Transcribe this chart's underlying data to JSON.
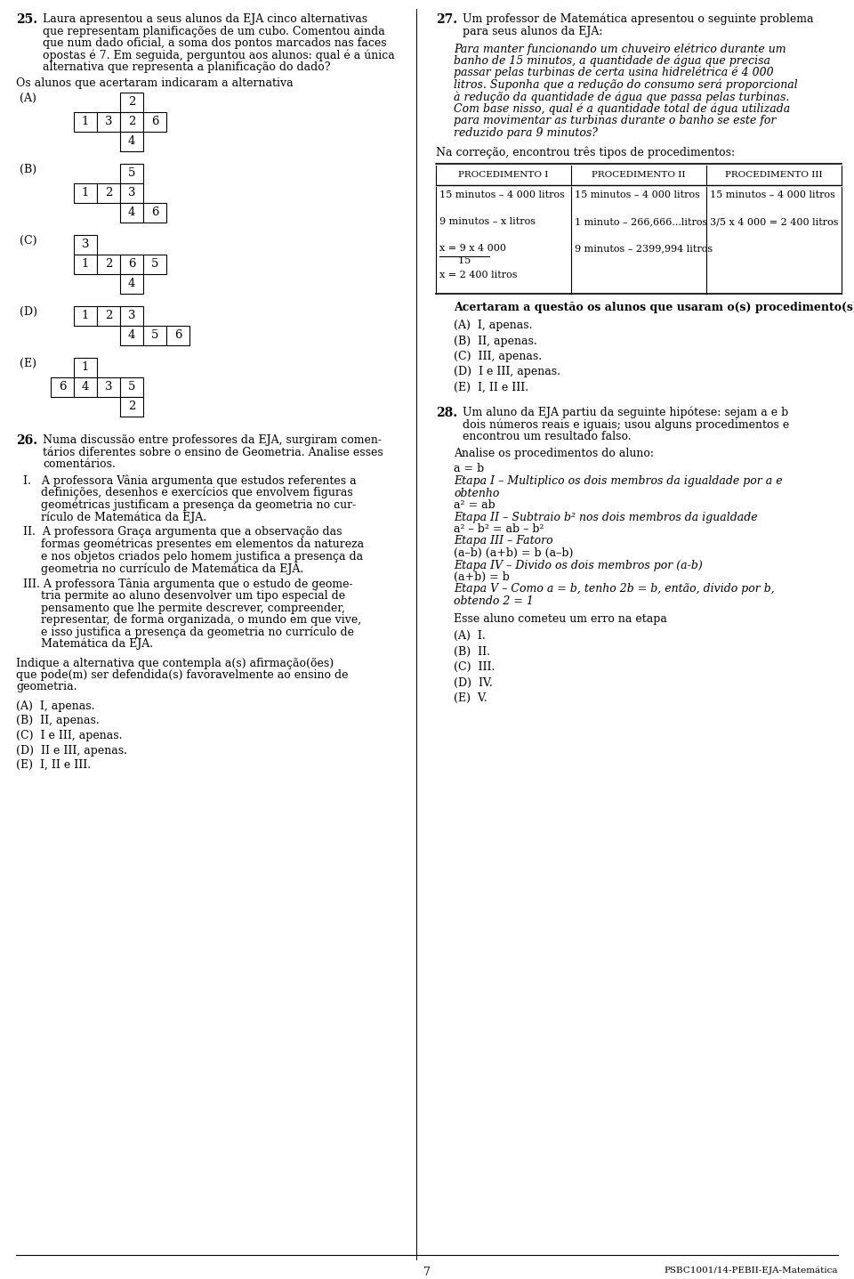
{
  "bg_color": "#ffffff",
  "text_color": "#000000",
  "page_number": "7",
  "footer_text": "PSBC1001/14-PEBII-EJA-Matemática",
  "q25_number": "25.",
  "q25_text_lines": [
    "Laura apresentou a seus alunos da EJA cinco alternativas",
    "que representam planificações de um cubo. Comentou ainda",
    "que num dado oficial, a soma dos pontos marcados nas faces",
    "opostas é 7. Em seguida, perguntou aos alunos: qual é a única",
    "alternativa que representa a planificação do dado?"
  ],
  "q25_sub": "Os alunos que acertaram indicaram a alternativa",
  "q26_number": "26.",
  "q26_text_lines": [
    "Numa discussão entre professores da EJA, surgiram comen-",
    "tários diferentes sobre o ensino de Geometria. Analise esses",
    "comentários."
  ],
  "q26_I_lines": [
    "I.   A professora Vânia argumenta que estudos referentes a",
    "     definições, desenhos e exercícios que envolvem figuras",
    "     geométricas justificam a presença da geometria no cur-",
    "     rículo de Matemática da EJA."
  ],
  "q26_II_lines": [
    "II.  A professora Graça argumenta que a observação das",
    "     formas geométricas presentes em elementos da natureza",
    "     e nos objetos criados pelo homem justifica a presença da",
    "     geometria no currículo de Matemática da EJA."
  ],
  "q26_III_lines": [
    "III. A professora Tânia argumenta que o estudo de geome-",
    "     tria permite ao aluno desenvolver um tipo especial de",
    "     pensamento que lhe permite descrever, compreender,",
    "     representar, de forma organizada, o mundo em que vive,",
    "     e isso justifica a presença da geometria no currículo de",
    "     Matemática da EJA."
  ],
  "q26_indique_lines": [
    "Indique a alternativa que contempla a(s) afirmação(ões)",
    "que pode(m) ser defendida(s) favoravelmente ao ensino de",
    "geometria."
  ],
  "q26_opts": [
    "(A)  I, apenas.",
    "(B)  II, apenas.",
    "(C)  I e III, apenas.",
    "(D)  II e III, apenas.",
    "(E)  I, II e III."
  ],
  "q27_number": "27.",
  "q27_text_lines": [
    "Um professor de Matemática apresentou o seguinte problema",
    "para seus alunos da EJA:"
  ],
  "q27_italic_lines": [
    "Para manter funcionando um chuveiro elétrico durante um",
    "banho de 15 minutos, a quantidade de água que precisa",
    "passar pelas turbinas de certa usina hidrelétrica é 4 000",
    "litros. Suponha que a redução do consumo será proporcional",
    "à redução da quantidade de água que passa pelas turbinas.",
    "Com base nisso, qual é a quantidade total de água utilizada",
    "para movimentar as turbinas durante o banho se este for",
    "reduzido para 9 minutos?"
  ],
  "q27_na": "Na correção, encontrou três tipos de procedimentos:",
  "q27_col_headers": [
    "Procedimento I",
    "Procedimento II",
    "Procedimento III"
  ],
  "q27_col1_rows": [
    "15 minutos – 4 000 litros",
    "9 minutos – x litros",
    "x = 9 x 4 000\n      15",
    "x = 2 400 litros"
  ],
  "q27_col2_rows": [
    "15 minutos – 4 000 litros",
    "1 minuto – 266,666...litros",
    "9 minutos – 2399,994 litros",
    ""
  ],
  "q27_col3_rows": [
    "15 minutos – 4 000 litros",
    "3/5 x 4 000 = 2 400 litros",
    "",
    ""
  ],
  "q27_acertaram": "Acertaram a questão os alunos que usaram o(s) procedimento(s)",
  "q27_opts": [
    "(A)  I, apenas.",
    "(B)  II, apenas.",
    "(C)  III, apenas.",
    "(D)  I e III, apenas.",
    "(E)  I, II e III."
  ],
  "q28_number": "28.",
  "q28_text_lines": [
    "Um aluno da EJA partiu da seguinte hipótese: sejam a e b",
    "dois números reais e iguais; usou alguns procedimentos e",
    "encontrou um resultado falso."
  ],
  "q28_sub": "Analise os procedimentos do aluno:",
  "q28_content": [
    {
      "text": "a = b",
      "style": "normal",
      "indent": 0
    },
    {
      "text": "Etapa I – Multiplico os dois membros da igualdade por a e",
      "style": "italic",
      "indent": 0
    },
    {
      "text": "obtenho",
      "style": "italic",
      "indent": 0
    },
    {
      "text": "a² = ab",
      "style": "normal",
      "indent": 0
    },
    {
      "text": "Etapa II – Subtraio b² nos dois membros da igualdade",
      "style": "italic",
      "indent": 0
    },
    {
      "text": "a² – b² = ab – b²",
      "style": "normal",
      "indent": 0
    },
    {
      "text": "Etapa III – Fatoro",
      "style": "italic",
      "indent": 0
    },
    {
      "text": "(a–b) (a+b) = b (a–b)",
      "style": "normal",
      "indent": 0
    },
    {
      "text": "Etapa IV – Divido os dois membros por (a-b)",
      "style": "italic",
      "indent": 0
    },
    {
      "text": "(a+b) = b",
      "style": "normal",
      "indent": 0
    },
    {
      "text": "Etapa V – Como a = b, tenho 2b = b, então, divido por b,",
      "style": "italic",
      "indent": 0
    },
    {
      "text": "obtendo 2 = 1",
      "style": "italic",
      "indent": 0
    }
  ],
  "q28_erro": "Esse aluno cometeu um erro na etapa",
  "q28_opts": [
    "(A)  I.",
    "(B)  II.",
    "(C)  III.",
    "(D)  IV.",
    "(E)  V."
  ]
}
